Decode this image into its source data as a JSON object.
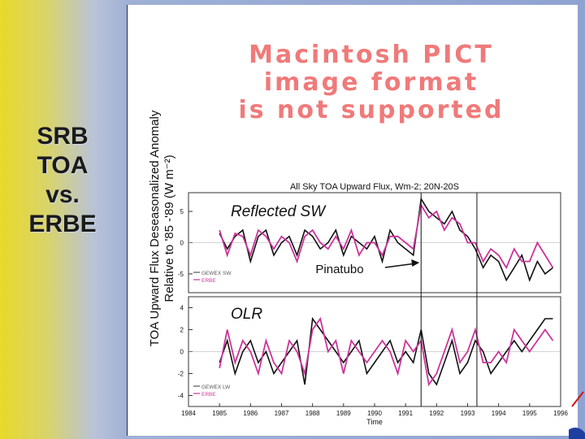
{
  "slide": {
    "side_title": [
      "SRB",
      "TOA",
      "vs.",
      "ERBE"
    ],
    "ylabel_line1": "TOA Upward Flux Deseasonalized Anomaly",
    "ylabel_line2": "Relative to '85 -'89 (W m⁻²)"
  },
  "placeholder": {
    "lines": [
      "Macintosh PICT",
      "image format",
      "is not supported"
    ]
  },
  "chart_data": {
    "type": "line",
    "title": "All Sky TOA Upward Flux, Wm-2;  20N-20S",
    "xlabel": "Time",
    "x_ticks": [
      1984,
      1985,
      1986,
      1987,
      1988,
      1989,
      1990,
      1991,
      1992,
      1993,
      1994,
      1995,
      1996
    ],
    "xlim": [
      1984,
      1996
    ],
    "colors": {
      "gewex": "#111111",
      "erbe": "#cc3399"
    },
    "vertical_markers": [
      1991.5,
      1993.3
    ],
    "annotations": {
      "pinatubo": "Pinatubo"
    },
    "panels": [
      {
        "name": "Reflected SW",
        "legend": [
          "GEWEX SW",
          "ERBE"
        ],
        "y_ticks": [
          5,
          0,
          -5
        ],
        "ylim": [
          -8,
          8
        ],
        "series": [
          {
            "name": "GEWEX SW",
            "x": [
              1985.0,
              1985.25,
              1985.5,
              1985.75,
              1986.0,
              1986.25,
              1986.5,
              1986.75,
              1987.0,
              1987.25,
              1987.5,
              1987.75,
              1988.0,
              1988.25,
              1988.5,
              1988.75,
              1989.0,
              1989.25,
              1989.5,
              1989.75,
              1990.0,
              1990.25,
              1990.5,
              1990.75,
              1991.0,
              1991.25,
              1991.5,
              1991.75,
              1992.0,
              1992.25,
              1992.5,
              1992.75,
              1993.0,
              1993.25,
              1993.5,
              1993.75,
              1994.0,
              1994.25,
              1994.5,
              1994.75,
              1995.0,
              1995.25,
              1995.5,
              1995.75
            ],
            "values": [
              1.5,
              -1,
              1,
              2,
              -3,
              1,
              2,
              -2,
              0,
              1,
              -2,
              2,
              1,
              -1,
              0,
              2,
              -2,
              1,
              0,
              -1,
              1,
              -3,
              2,
              0,
              -1,
              -2,
              7,
              5,
              4,
              3,
              5,
              2,
              1,
              -1,
              -4,
              -2,
              -3,
              -6,
              -4,
              -2,
              -6,
              -3,
              -5,
              -4
            ]
          },
          {
            "name": "ERBE",
            "x": [
              1985.0,
              1985.25,
              1985.5,
              1985.75,
              1986.0,
              1986.25,
              1986.5,
              1986.75,
              1987.0,
              1987.25,
              1987.5,
              1987.75,
              1988.0,
              1988.25,
              1988.5,
              1988.75,
              1989.0,
              1989.25,
              1989.5,
              1989.75,
              1990.0,
              1990.25,
              1990.5,
              1990.75,
              1991.0,
              1991.25,
              1991.5,
              1991.75,
              1992.0,
              1992.25,
              1992.5,
              1992.75,
              1993.0,
              1993.25,
              1993.5,
              1993.75,
              1994.0,
              1994.25,
              1994.5,
              1994.75,
              1995.0,
              1995.25,
              1995.5,
              1995.75
            ],
            "values": [
              2,
              -2,
              1.5,
              1,
              -2,
              2,
              1,
              -1,
              1,
              0,
              -3,
              1,
              2,
              0,
              -1,
              1,
              -1,
              2,
              -2,
              0,
              0,
              -2,
              1,
              1,
              0,
              -1,
              6,
              4,
              5,
              2,
              4,
              3,
              0,
              0,
              -3,
              -1,
              -2,
              -4,
              -1,
              -3,
              -3,
              0,
              -2,
              -4
            ]
          }
        ]
      },
      {
        "name": "OLR",
        "legend": [
          "GEWEX LW",
          "ERBE"
        ],
        "y_ticks": [
          4,
          2,
          0,
          -2,
          -4
        ],
        "ylim": [
          -5,
          5
        ],
        "series": [
          {
            "name": "GEWEX LW",
            "x": [
              1985.0,
              1985.25,
              1985.5,
              1985.75,
              1986.0,
              1986.25,
              1986.5,
              1986.75,
              1987.0,
              1987.25,
              1987.5,
              1987.75,
              1988.0,
              1988.25,
              1988.5,
              1988.75,
              1989.0,
              1989.25,
              1989.5,
              1989.75,
              1990.0,
              1990.25,
              1990.5,
              1990.75,
              1991.0,
              1991.25,
              1991.5,
              1991.75,
              1992.0,
              1992.25,
              1992.5,
              1992.75,
              1993.0,
              1993.25,
              1993.5,
              1993.75,
              1994.0,
              1994.25,
              1994.5,
              1994.75,
              1995.0,
              1995.25,
              1995.5,
              1995.75
            ],
            "values": [
              -1,
              1,
              -2,
              0,
              1,
              -1,
              0,
              -2,
              -1,
              0,
              1,
              -3,
              3,
              2,
              1,
              0,
              -1,
              0,
              1,
              -2,
              -1,
              0,
              1,
              -1,
              0,
              -1,
              2,
              -2,
              -3,
              -1,
              1,
              -2,
              -1,
              1,
              0,
              -2,
              -1,
              0,
              1,
              0,
              1,
              2,
              3,
              3
            ]
          },
          {
            "name": "ERBE",
            "x": [
              1985.0,
              1985.25,
              1985.5,
              1985.75,
              1986.0,
              1986.25,
              1986.5,
              1986.75,
              1987.0,
              1987.25,
              1987.5,
              1987.75,
              1988.0,
              1988.25,
              1988.5,
              1988.75,
              1989.0,
              1989.25,
              1989.5,
              1989.75,
              1990.0,
              1990.25,
              1990.5,
              1990.75,
              1991.0,
              1991.25,
              1991.5,
              1991.75,
              1992.0,
              1992.25,
              1992.5,
              1992.75,
              1993.0,
              1993.25,
              1993.5,
              1993.75,
              1994.0,
              1994.25,
              1994.5,
              1994.75,
              1995.0,
              1995.25,
              1995.5,
              1995.75
            ],
            "values": [
              -1.5,
              2,
              -1,
              1,
              0,
              -2,
              1,
              -1,
              -2,
              1,
              0,
              -2,
              2,
              3,
              0,
              1,
              -2,
              1,
              0,
              -1,
              0,
              1,
              0,
              -2,
              1,
              0,
              1,
              -3,
              -2,
              0,
              2,
              -1,
              0,
              2,
              -1,
              -1,
              0,
              -1,
              2,
              1,
              0,
              1,
              2,
              1
            ]
          }
        ]
      }
    ]
  }
}
